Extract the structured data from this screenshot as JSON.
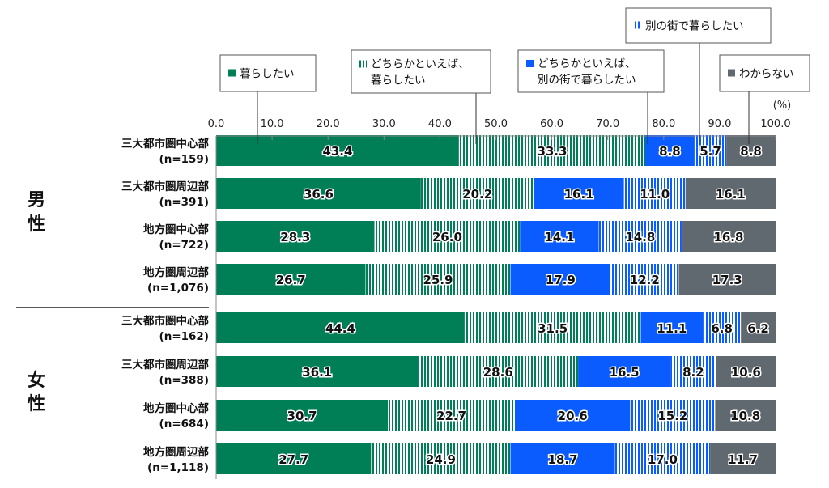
{
  "chart_data": {
    "type": "bar",
    "orientation": "horizontal",
    "stacked": true,
    "unit_label": "(%)",
    "xlim": [
      0,
      100
    ],
    "x_ticks": [
      "0.0",
      "10.0",
      "20.0",
      "30.0",
      "40.0",
      "50.0",
      "60.0",
      "70.0",
      "80.0",
      "90.0",
      "100.0"
    ],
    "groups": [
      {
        "label": "男性",
        "label_chars": [
          "男",
          "性"
        ],
        "rows": [
          0,
          1,
          2,
          3
        ]
      },
      {
        "label": "女性",
        "label_chars": [
          "女",
          "性"
        ],
        "rows": [
          4,
          5,
          6,
          7
        ]
      }
    ],
    "categories": [
      {
        "name": "三大都市圏中心部",
        "n": "(n=159)"
      },
      {
        "name": "三大都市圏周辺部",
        "n": "(n=391)"
      },
      {
        "name": "地方圏中心部",
        "n": "(n=722)"
      },
      {
        "name": "地方圏周辺部",
        "n": "(n=1,076)"
      },
      {
        "name": "三大都市圏中心部",
        "n": "(n=162)"
      },
      {
        "name": "三大都市圏周辺部",
        "n": "(n=388)"
      },
      {
        "name": "地方圏中心部",
        "n": "(n=684)"
      },
      {
        "name": "地方圏周辺部",
        "n": "(n=1,118)"
      }
    ],
    "series": [
      {
        "name": "暮らしたい",
        "name_lines": [
          "暮らしたい"
        ],
        "color": "#007f56",
        "pattern": "solid",
        "values": [
          43.4,
          36.6,
          28.3,
          26.7,
          44.4,
          36.1,
          30.7,
          27.7
        ]
      },
      {
        "name": "どちらかといえば、暮らしたい",
        "name_lines": [
          "どちらかといえば、",
          "暮らしたい"
        ],
        "color": "#007f56",
        "pattern": "vertical-stripes",
        "values": [
          33.3,
          20.2,
          26.0,
          25.9,
          31.5,
          28.6,
          22.7,
          24.9
        ]
      },
      {
        "name": "どちらかといえば、別の街で暮らしたい",
        "name_lines": [
          "どちらかといえば、",
          "別の街で暮らしたい"
        ],
        "color": "#0a5cff",
        "pattern": "solid",
        "values": [
          8.8,
          16.1,
          14.1,
          17.9,
          11.1,
          16.5,
          20.6,
          18.7
        ]
      },
      {
        "name": "別の街で暮らしたい",
        "name_lines": [
          "別の街で暮らしたい"
        ],
        "color": "#0a5cff",
        "pattern": "vertical-stripes",
        "values": [
          5.7,
          11.0,
          14.8,
          12.2,
          6.8,
          8.2,
          15.2,
          17.0
        ]
      },
      {
        "name": "わからない",
        "name_lines": [
          "わからない"
        ],
        "color": "#606870",
        "pattern": "solid",
        "values": [
          8.8,
          16.1,
          16.8,
          17.3,
          6.2,
          10.6,
          10.8,
          11.7
        ]
      }
    ],
    "legend_placement": "top-callouts",
    "grid": false
  }
}
